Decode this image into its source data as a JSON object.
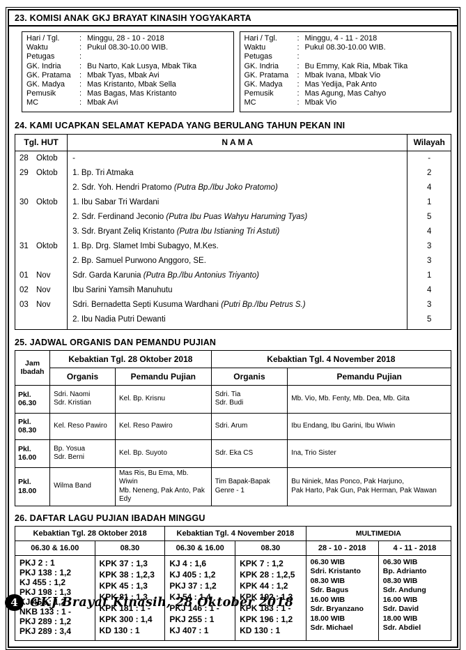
{
  "page": {
    "number": "4",
    "footer_text": "GKJ Brayat Kinasih, 28 Oktober 2018"
  },
  "section23": {
    "title": "23. KOMISI ANAK GKJ BRAYAT KINASIH YOGYAKARTA",
    "boxes": [
      {
        "rows": [
          {
            "label": "Hari / Tgl.",
            "value": "Minggu, 28 - 10 - 2018"
          },
          {
            "label": "Waktu",
            "value": "Pukul 08.30-10.00 WIB."
          },
          {
            "label": "Petugas",
            "value": ""
          },
          {
            "label": "GK. Indria",
            "value": "Bu Narto, Kak Lusya, Mbak Tika"
          },
          {
            "label": "GK. Pratama",
            "value": "Mbak Tyas, Mbak Avi"
          },
          {
            "label": "GK. Madya",
            "value": "Mas Kristanto, Mbak Sella"
          },
          {
            "label": "Pemusik",
            "value": "Mas Bagas, Mas Kristanto"
          },
          {
            "label": "MC",
            "value": "Mbak Avi"
          }
        ]
      },
      {
        "rows": [
          {
            "label": "Hari / Tgl.",
            "value": "Minggu, 4 - 11 - 2018"
          },
          {
            "label": "Waktu",
            "value": "Pukul 08.30-10.00 WIB."
          },
          {
            "label": "Petugas",
            "value": ""
          },
          {
            "label": "GK. Indria",
            "value": "Bu Emmy, Kak Ria, Mbak Tika"
          },
          {
            "label": "GK. Pratama",
            "value": "Mbak Ivana, Mbak Vio"
          },
          {
            "label": "GK. Madya",
            "value": "Mas Yedija, Pak Anto"
          },
          {
            "label": "Pemusik",
            "value": "Mas Agung, Mas Cahyo"
          },
          {
            "label": "MC",
            "value": "Mbak Vio"
          }
        ]
      }
    ]
  },
  "section24": {
    "title": "24. KAMI UCAPKAN SELAMAT KEPADA YANG BERULANG TAHUN PEKAN INI",
    "headers": {
      "date": "Tgl. HUT",
      "name": "N A M A",
      "area": "Wilayah"
    },
    "rows": [
      {
        "day": "28",
        "month": "Oktob",
        "name": "-",
        "note": "",
        "area": "-"
      },
      {
        "day": "29",
        "month": "Oktob",
        "name": "1. Bp. Tri Atmaka",
        "note": "",
        "area": "2"
      },
      {
        "day": "",
        "month": "",
        "name": "2. Sdr. Yoh. Hendri Pratomo",
        "note": "(Putra Bp./Ibu Joko Pratomo)",
        "area": "4"
      },
      {
        "day": "30",
        "month": "Oktob",
        "name": "1. Ibu Sabar Tri Wardani",
        "note": "",
        "area": "1"
      },
      {
        "day": "",
        "month": "",
        "name": "2. Sdr. Ferdinand Jeconio",
        "note": "(Putra Ibu Puas Wahyu Haruming Tyas)",
        "area": "5"
      },
      {
        "day": "",
        "month": "",
        "name": "3. Sdr. Bryant Zeliq Kristanto",
        "note": "(Putra  Ibu Istianing Tri Astuti)",
        "area": "4"
      },
      {
        "day": "31",
        "month": "Oktob",
        "name": "1. Bp. Drg. Slamet Imbi Subagyo, M.Kes.",
        "note": "",
        "area": "3"
      },
      {
        "day": "",
        "month": "",
        "name": "2. Bp. Samuel Purwono Anggoro, SE.",
        "note": "",
        "area": "3"
      },
      {
        "day": "01",
        "month": "Nov",
        "name": "Sdr. Garda Karunia",
        "note": "(Putra Bp./Ibu Antonius Triyanto)",
        "area": "1"
      },
      {
        "day": "02",
        "month": "Nov",
        "name": "Ibu Sarini Yamsih Manuhutu",
        "note": "",
        "area": "4"
      },
      {
        "day": "03",
        "month": "Nov",
        "name": "Sdri. Bernadetta Septi Kusuma Wardhani",
        "note": "(Putri Bp./Ibu Petrus S.)",
        "area": "3"
      },
      {
        "day": "",
        "month": "",
        "name": "2. Ibu Nadia Putri Dewanti",
        "note": "",
        "area": "5"
      }
    ]
  },
  "section25": {
    "title": "25. JADWAL ORGANIS DAN PEMANDU PUJIAN",
    "headers": {
      "jam": "Jam Ibadah",
      "kebaktian1": "Kebaktian Tgl. 28 Oktober 2018",
      "kebaktian2": "Kebaktian Tgl. 4 November 2018",
      "organis_label": "Organis",
      "pemandu_label": "Pemandu Pujian"
    },
    "rows": [
      {
        "time": "Pkl. 06.30",
        "cells": [
          [
            "Sdri. Naomi",
            "Sdr. Kristian"
          ],
          [
            "Kel. Bp. Krisnu"
          ],
          [
            "Sdri. Tia",
            "Sdr. Budi"
          ],
          [
            "Mb. Vio, Mb. Fenty, Mb. Dea, Mb. Gita"
          ]
        ]
      },
      {
        "time": "Pkl. 08.30",
        "cells": [
          [
            "Kel. Reso Pawiro"
          ],
          [
            "Kel. Reso Pawiro"
          ],
          [
            "Sdri. Arum"
          ],
          [
            "Ibu Endang, Ibu Garini, Ibu Wiwin"
          ]
        ]
      },
      {
        "time": "Pkl. 16.00",
        "cells": [
          [
            "Bp. Yosua",
            "Sdr. Berni"
          ],
          [
            "Kel. Bp. Suyoto"
          ],
          [
            "Sdr. Eka CS"
          ],
          [
            "Ina, Trio Sister"
          ]
        ]
      },
      {
        "time": "Pkl. 18.00",
        "cells": [
          [
            "Wilma Band"
          ],
          [
            "Mas Ris, Bu Ema, Mb. Wiwin",
            "Mb. Neneng, Pak Anto, Pak Edy"
          ],
          [
            "Tim Bapak-Bapak",
            "Genre - 1"
          ],
          [
            "Bu Niniek, Mas Ponco, Pak Harjuno,",
            "Pak Harto, Pak Gun, Pak Herman, Pak Wawan"
          ]
        ]
      }
    ]
  },
  "section26": {
    "title": "26. DAFTAR LAGU PUJIAN IBADAH MINGGU",
    "headers": {
      "kebaktian1": "Kebaktian Tgl. 28 Oktober 2018",
      "kebaktian2": "Kebaktian Tgl. 4 November 2018",
      "multimedia": "MULTIMEDIA"
    },
    "subheaders": [
      "06.30 & 16.00",
      "08.30",
      "06.30 & 16.00",
      "08.30",
      "28 - 10 - 2018",
      "4 - 11 - 2018"
    ],
    "columns": [
      {
        "type": "song",
        "lines": [
          "PKJ 2 : 1",
          "PKJ 138 : 1,2",
          "KJ 455 : 1,2",
          "PKJ 198 : 1,3",
          "KJ 451 : 1,2",
          "NKB 133 : 1 -",
          "PKJ 289 : 1,2",
          "PKJ 289 : 3,4"
        ]
      },
      {
        "type": "song",
        "lines": [
          "KPK 37 : 1,3",
          "KPK 38 : 1,2,3",
          "KPK 45 : 1,3",
          "KPK 81 : 1,3",
          "KPK 181 : 1 -",
          "KPK 300 : 1,4",
          "KD 130 : 1"
        ]
      },
      {
        "type": "song",
        "lines": [
          "KJ 4 : 1,6",
          "KJ 405 : 1,2",
          "PKJ 37 : 1,2",
          "KJ 54 : 1,4",
          "PKJ 146 : 1 -",
          "PKJ 255 : 1",
          "KJ 407 : 1"
        ]
      },
      {
        "type": "song",
        "lines": [
          "KPK 7 : 1,2",
          "KPK 28 : 1,2,5",
          "KPK 44 : 1,2",
          "KPK 192 : 1,3",
          "KPK 183 : 1 -",
          "KPK 196 : 1,2",
          "KD 130 : 1"
        ]
      },
      {
        "type": "multimedia",
        "lines": [
          "06.30 WIB",
          "Sdri. Kristanto",
          "08.30 WIB",
          "Sdr. Bagus",
          "16.00 WIB",
          "Sdr. Bryanzano",
          "18.00 WIB",
          "Sdr. Michael"
        ]
      },
      {
        "type": "multimedia",
        "lines": [
          "06.30 WIB",
          "Bp. Adrianto",
          "08.30 WIB",
          "Sdr. Andung",
          "16.00 WIB",
          "Sdr. David",
          "18.00 WIB",
          "Sdr. Abdiel"
        ]
      }
    ]
  }
}
